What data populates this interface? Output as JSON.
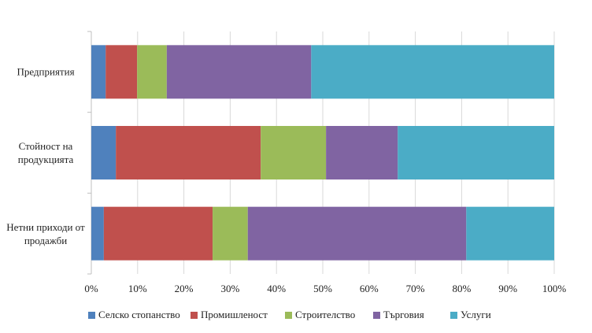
{
  "chart_data": {
    "type": "stacked-bar-horizontal",
    "categories": [
      "Предприятия",
      "Стойност на продукцията",
      "Нетни приходи от продажби"
    ],
    "series": [
      {
        "name": "Селско стопанство",
        "color": "#4f81bd",
        "values": [
          3.1,
          5.3,
          2.7
        ]
      },
      {
        "name": "Промишленост",
        "color": "#c0504d",
        "values": [
          6.8,
          31.3,
          23.5
        ]
      },
      {
        "name": "Строителство",
        "color": "#9bbb59",
        "values": [
          6.4,
          14.1,
          7.6
        ]
      },
      {
        "name": "Търговия",
        "color": "#8064a2",
        "values": [
          31.2,
          15.5,
          47.2
        ]
      },
      {
        "name": "Услуги",
        "color": "#4bacc6",
        "values": [
          52.5,
          33.8,
          19.0
        ]
      }
    ],
    "xlim": [
      0,
      100
    ],
    "xticks": [
      {
        "value": 0,
        "label": "0%"
      },
      {
        "value": 10,
        "label": "10%"
      },
      {
        "value": 20,
        "label": "20%"
      },
      {
        "value": 30,
        "label": "30%"
      },
      {
        "value": 40,
        "label": "40%"
      },
      {
        "value": 50,
        "label": "50%"
      },
      {
        "value": 60,
        "label": "60%"
      },
      {
        "value": 70,
        "label": "70%"
      },
      {
        "value": 80,
        "label": "80%"
      },
      {
        "value": 90,
        "label": "90%"
      },
      {
        "value": 100,
        "label": "100%"
      }
    ],
    "grid": true,
    "legend": "bottom"
  }
}
